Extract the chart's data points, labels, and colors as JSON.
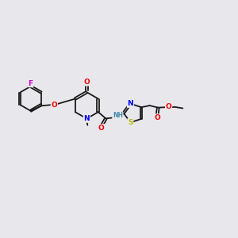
{
  "bg_color": "#e8e8ec",
  "bond_color": "#1a1a1a",
  "colors": {
    "C": "#1a1a1a",
    "N": "#0000ee",
    "O": "#ee0000",
    "S": "#bbbb00",
    "F": "#cc00cc",
    "H": "#4488aa"
  },
  "font_size": 6.5,
  "bond_width": 1.3,
  "xlim": [
    0,
    14
  ],
  "ylim": [
    0,
    10
  ]
}
